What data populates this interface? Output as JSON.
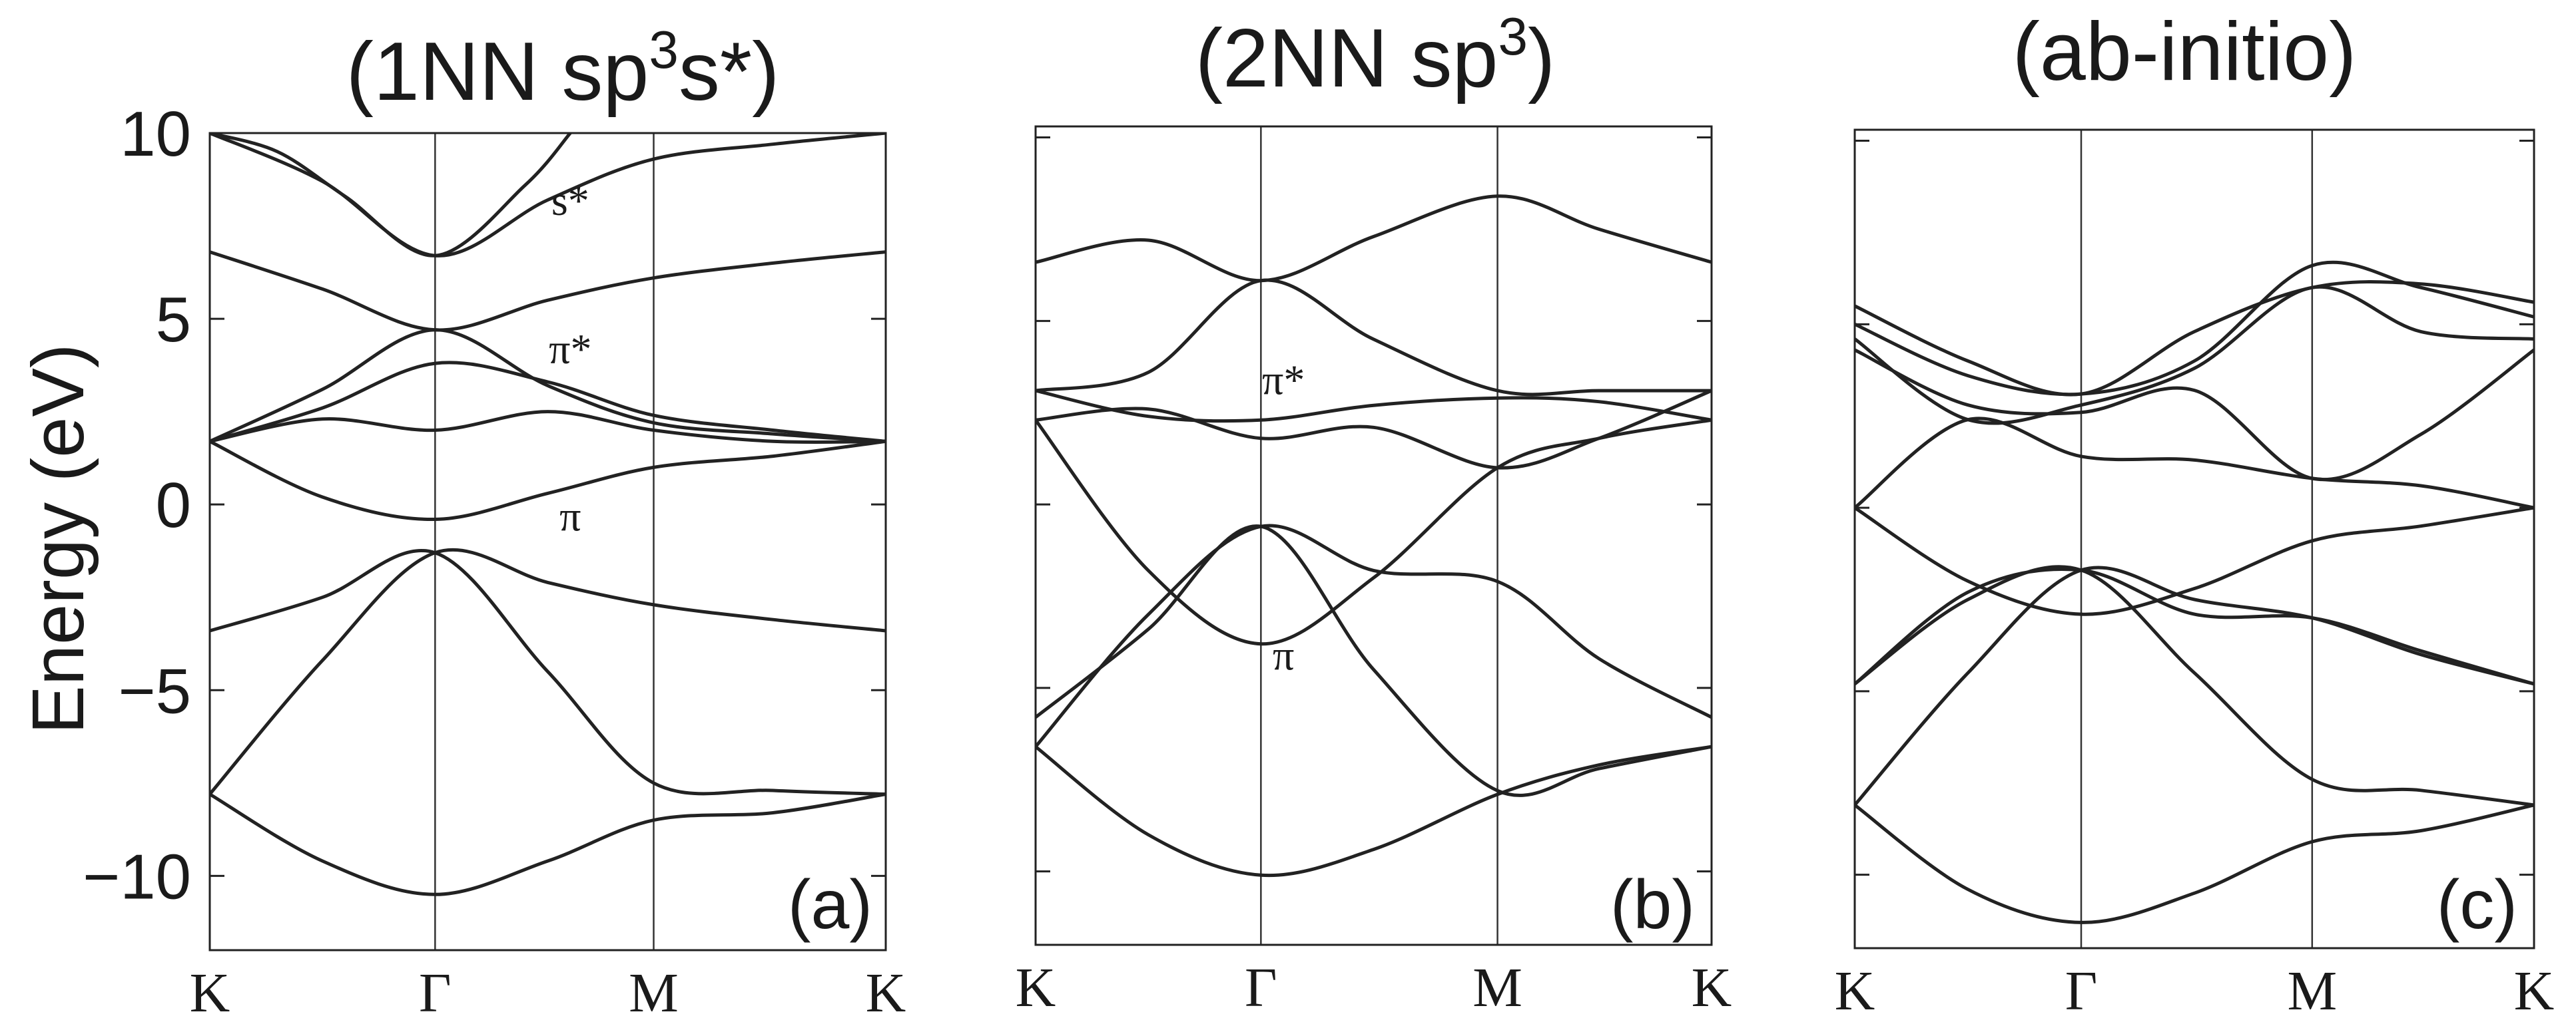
{
  "figure": {
    "y_axis_label": "Energy (eV)"
  },
  "chart_data": [
    {
      "type": "line",
      "title": "(1NN sp",
      "title_sup": "3",
      "title_mid": "s*)",
      "tag": "(a)",
      "ylabel": "Energy (eV)",
      "ylim": [
        -12,
        10
      ],
      "yticks": [
        10,
        5,
        0,
        -5,
        -10
      ],
      "ytick_labels": [
        "10",
        "5",
        "0",
        "−5",
        "−10"
      ],
      "xticks": [
        "K",
        "Γ",
        "M",
        "K"
      ],
      "xtick_positions": [
        0,
        1,
        1.97,
        3
      ],
      "xlim": [
        0,
        3
      ],
      "annotations": [
        {
          "text": "s*",
          "x": 1.6,
          "y": 7.8
        },
        {
          "text": "π*",
          "x": 1.6,
          "y": 3.8
        },
        {
          "text": "π",
          "x": 1.6,
          "y": -0.7
        }
      ],
      "series": [
        {
          "x": [
            0,
            0.5,
            1,
            1.5,
            1.97,
            2.5,
            3
          ],
          "y": [
            -7.8,
            -9.6,
            -10.5,
            -9.6,
            -8.5,
            -8.3,
            -7.8
          ]
        },
        {
          "x": [
            0,
            0.5,
            1,
            1.5,
            1.97,
            2.5,
            3
          ],
          "y": [
            -7.8,
            -4.2,
            -1.3,
            -2.1,
            -2.7,
            -3.1,
            -3.4
          ]
        },
        {
          "x": [
            0,
            0.5,
            1,
            1.5,
            1.97,
            2.5,
            3
          ],
          "y": [
            -3.4,
            -2.5,
            -1.3,
            -4.5,
            -7.5,
            -7.7,
            -7.8
          ]
        },
        {
          "x": [
            0,
            0.5,
            1,
            1.5,
            1.97,
            2.5,
            3
          ],
          "y": [
            1.7,
            0.2,
            -0.4,
            0.3,
            1.0,
            1.3,
            1.7
          ]
        },
        {
          "x": [
            0,
            0.5,
            1,
            1.5,
            1.97,
            2.5,
            3
          ],
          "y": [
            1.7,
            2.3,
            2.0,
            2.5,
            2.0,
            1.7,
            1.7
          ]
        },
        {
          "x": [
            0,
            0.5,
            1,
            1.5,
            1.97,
            2.5,
            3
          ],
          "y": [
            1.7,
            2.6,
            3.8,
            3.3,
            2.4,
            2.0,
            1.7
          ]
        },
        {
          "x": [
            0,
            0.5,
            1,
            1.5,
            1.97,
            2.5,
            3
          ],
          "y": [
            1.7,
            3.1,
            4.7,
            3.2,
            2.2,
            1.9,
            1.7
          ]
        },
        {
          "x": [
            0,
            0.5,
            1,
            1.5,
            1.97,
            2.5,
            3
          ],
          "y": [
            6.8,
            5.8,
            4.7,
            5.5,
            6.1,
            6.5,
            6.8
          ]
        },
        {
          "x": [
            0,
            0.5,
            1,
            1.5,
            1.97,
            2.5,
            3
          ],
          "y": [
            10.0,
            8.7,
            6.7,
            8.2,
            9.3,
            9.7,
            10.0
          ]
        },
        {
          "x": [
            0,
            0.3,
            0.6,
            1,
            1.4,
            1.6
          ],
          "y": [
            10.0,
            9.5,
            8.3,
            6.7,
            8.6,
            10.0
          ]
        }
      ]
    },
    {
      "type": "line",
      "title": "(2NN sp",
      "title_sup": "3",
      "title_mid": ")",
      "tag": "(b)",
      "ylim": [
        -12,
        10.3
      ],
      "xticks": [
        "K",
        "Γ",
        "M",
        "K"
      ],
      "xtick_positions": [
        0,
        1,
        2.05,
        3
      ],
      "xlim": [
        0,
        3
      ],
      "annotations": [
        {
          "text": "π*",
          "x": 1.1,
          "y": 3.0
        },
        {
          "text": "π",
          "x": 1.1,
          "y": -4.5
        }
      ],
      "series": [
        {
          "x": [
            0,
            0.5,
            1,
            1.5,
            2.05,
            2.5,
            3
          ],
          "y": [
            -6.6,
            -9.0,
            -10.1,
            -9.4,
            -7.9,
            -7.1,
            -6.6
          ]
        },
        {
          "x": [
            0,
            0.5,
            1,
            1.5,
            2.05,
            2.5,
            3
          ],
          "y": [
            -6.6,
            -3.0,
            -0.6,
            -1.8,
            -2.1,
            -4.2,
            -5.8
          ]
        },
        {
          "x": [
            0,
            0.5,
            1,
            1.5,
            2.05,
            2.5,
            3
          ],
          "y": [
            -5.8,
            -3.4,
            -0.6,
            -4.5,
            -7.8,
            -7.2,
            -6.6
          ]
        },
        {
          "x": [
            0,
            0.5,
            1,
            1.5,
            2.05,
            2.5,
            3
          ],
          "y": [
            2.3,
            -1.8,
            -3.8,
            -2.0,
            1.0,
            1.8,
            2.3
          ]
        },
        {
          "x": [
            0,
            0.5,
            1,
            1.5,
            2.05,
            2.5,
            3
          ],
          "y": [
            2.3,
            2.6,
            1.8,
            2.1,
            1.0,
            1.8,
            3.1
          ]
        },
        {
          "x": [
            0,
            0.5,
            1,
            1.5,
            2.05,
            2.5,
            3
          ],
          "y": [
            3.1,
            2.4,
            2.3,
            2.7,
            2.9,
            2.8,
            2.3
          ]
        },
        {
          "x": [
            0,
            0.5,
            1,
            1.5,
            2.05,
            2.5,
            3
          ],
          "y": [
            3.1,
            3.6,
            6.1,
            4.5,
            3.1,
            3.1,
            3.1
          ]
        },
        {
          "x": [
            0,
            0.5,
            1,
            1.5,
            2.05,
            2.5,
            3
          ],
          "y": [
            6.6,
            7.2,
            6.1,
            7.3,
            8.4,
            7.5,
            6.6
          ]
        }
      ]
    },
    {
      "type": "line",
      "title": "(ab-initio)",
      "tag": "(c)",
      "ylim": [
        -12,
        10.3
      ],
      "xticks": [
        "K",
        "Γ",
        "M",
        "K"
      ],
      "xtick_positions": [
        0,
        1,
        2.02,
        3
      ],
      "xlim": [
        0,
        3
      ],
      "series": [
        {
          "x": [
            0,
            0.5,
            1,
            1.5,
            2.02,
            2.5,
            3
          ],
          "y": [
            -8.1,
            -10.4,
            -11.3,
            -10.5,
            -9.1,
            -8.8,
            -8.1
          ]
        },
        {
          "x": [
            0,
            0.5,
            1,
            1.5,
            2.02,
            2.5,
            3
          ],
          "y": [
            -8.1,
            -4.5,
            -1.7,
            -2.5,
            -3.0,
            -4.0,
            -4.8
          ]
        },
        {
          "x": [
            0,
            0.5,
            1,
            1.5,
            2.02,
            2.5,
            3
          ],
          "y": [
            -4.8,
            -2.5,
            -1.7,
            -4.5,
            -7.4,
            -7.7,
            -8.1
          ]
        },
        {
          "x": [
            0,
            0.5,
            1,
            1.5,
            2.02,
            2.5,
            3
          ],
          "y": [
            0.0,
            -2.0,
            -2.9,
            -2.2,
            -0.9,
            -0.5,
            0.0
          ]
        },
        {
          "x": [
            0,
            0.5,
            1,
            1.5,
            2.02,
            2.5,
            3
          ],
          "y": [
            0.0,
            2.4,
            1.4,
            1.3,
            0.8,
            0.6,
            0.0
          ]
        },
        {
          "x": [
            0,
            0.5,
            1,
            1.5,
            2.02,
            2.5,
            3
          ],
          "y": [
            4.3,
            2.8,
            2.6,
            3.2,
            0.8,
            2.0,
            4.3
          ]
        },
        {
          "x": [
            0,
            0.5,
            1,
            1.5,
            2.02,
            2.5,
            3
          ],
          "y": [
            5.0,
            3.6,
            3.1,
            4.0,
            6.6,
            6.0,
            5.2
          ]
        },
        {
          "x": [
            0,
            0.5,
            1,
            1.5,
            2.02,
            2.5,
            3
          ],
          "y": [
            5.5,
            4.0,
            3.1,
            4.8,
            6.0,
            6.1,
            5.6
          ]
        },
        {
          "x": [
            0,
            0.5,
            1,
            1.5,
            2.02,
            2.5,
            3
          ],
          "y": [
            -4.8,
            -2.3,
            -1.7,
            -2.9,
            -3.0,
            -3.9,
            -4.8
          ]
        },
        {
          "x": [
            0,
            0.5,
            1,
            1.5,
            2.02,
            2.5,
            3
          ],
          "y": [
            4.6,
            2.4,
            2.8,
            3.8,
            6.0,
            4.8,
            4.6
          ]
        }
      ]
    }
  ]
}
